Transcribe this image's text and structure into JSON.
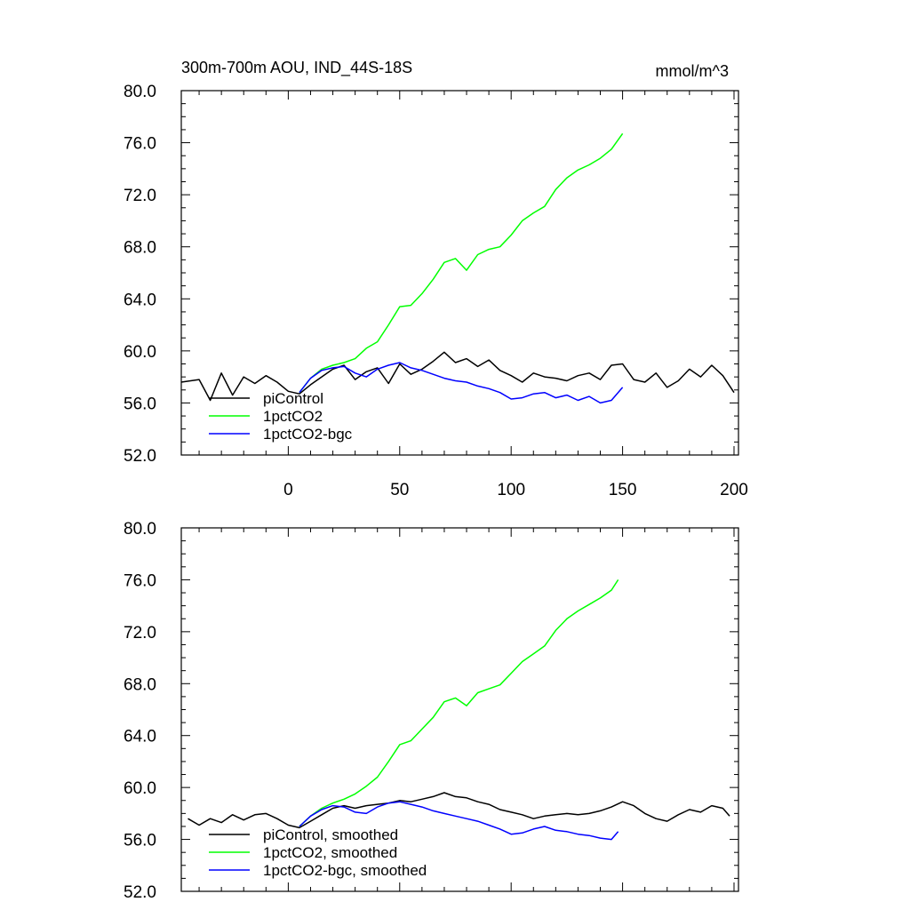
{
  "header": {
    "title": "300m-700m AOU, IND_44S-18S",
    "units": "mmol/m^3"
  },
  "chart_data": [
    {
      "type": "line",
      "panel": "raw",
      "xlim": [
        -48,
        202
      ],
      "ylim": [
        52,
        80
      ],
      "xticks": [
        0,
        50,
        100,
        150,
        200
      ],
      "xtick_labels": [
        "0",
        "50",
        "100",
        "150",
        "200"
      ],
      "yticks": [
        52,
        56,
        60,
        64,
        68,
        72,
        76,
        80
      ],
      "ytick_labels": [
        "52.0",
        "56.0",
        "60.0",
        "64.0",
        "68.0",
        "72.0",
        "76.0",
        "80.0"
      ],
      "legend_position": "bottom-left",
      "series": [
        {
          "name": "piControl",
          "color": "#000000",
          "x": [
            -48,
            -40,
            -35,
            -30,
            -25,
            -20,
            -15,
            -10,
            -5,
            0,
            5,
            10,
            15,
            20,
            25,
            30,
            35,
            40,
            45,
            50,
            55,
            60,
            65,
            70,
            75,
            80,
            85,
            90,
            95,
            100,
            105,
            110,
            115,
            120,
            125,
            130,
            135,
            140,
            145,
            150,
            155,
            160,
            165,
            170,
            175,
            180,
            185,
            190,
            195,
            200
          ],
          "y": [
            57.6,
            57.8,
            56.2,
            58.3,
            56.6,
            58.0,
            57.5,
            58.1,
            57.6,
            56.9,
            56.7,
            57.4,
            58.0,
            58.6,
            58.9,
            57.8,
            58.4,
            58.7,
            57.5,
            59.0,
            58.2,
            58.6,
            59.2,
            59.9,
            59.1,
            59.4,
            58.8,
            59.3,
            58.5,
            58.1,
            57.6,
            58.3,
            58.0,
            57.9,
            57.7,
            58.1,
            58.3,
            57.8,
            58.9,
            59.0,
            57.8,
            57.6,
            58.3,
            57.2,
            57.7,
            58.6,
            58.0,
            58.9,
            58.1,
            56.8
          ]
        },
        {
          "name": "1pctCO2",
          "color": "#00ff00",
          "x": [
            5,
            10,
            15,
            20,
            25,
            30,
            35,
            40,
            45,
            50,
            55,
            60,
            65,
            70,
            75,
            80,
            85,
            90,
            95,
            100,
            105,
            110,
            115,
            120,
            125,
            130,
            135,
            140,
            145,
            150
          ],
          "y": [
            56.8,
            57.9,
            58.6,
            58.9,
            59.1,
            59.4,
            60.2,
            60.7,
            62.0,
            63.4,
            63.5,
            64.4,
            65.5,
            66.8,
            67.1,
            66.2,
            67.4,
            67.8,
            68.0,
            68.9,
            70.0,
            70.6,
            71.1,
            72.4,
            73.3,
            73.9,
            74.3,
            74.8,
            75.5,
            76.7
          ]
        },
        {
          "name": "1pctCO2-bgc",
          "color": "#0000ff",
          "x": [
            5,
            10,
            15,
            20,
            25,
            30,
            35,
            40,
            45,
            50,
            55,
            60,
            65,
            70,
            75,
            80,
            85,
            90,
            95,
            100,
            105,
            110,
            115,
            120,
            125,
            130,
            135,
            140,
            145,
            150
          ],
          "y": [
            56.8,
            57.9,
            58.5,
            58.7,
            58.8,
            58.3,
            58.0,
            58.6,
            58.9,
            59.1,
            58.7,
            58.5,
            58.2,
            57.9,
            57.7,
            57.6,
            57.3,
            57.1,
            56.8,
            56.3,
            56.4,
            56.7,
            56.8,
            56.4,
            56.6,
            56.2,
            56.5,
            56.0,
            56.2,
            57.2
          ]
        }
      ]
    },
    {
      "type": "line",
      "panel": "smoothed",
      "xlim": [
        -48,
        202
      ],
      "ylim": [
        52,
        80
      ],
      "xticks": [
        0,
        50,
        100,
        150,
        200
      ],
      "xtick_labels": [
        "",
        "",
        "",
        "",
        ""
      ],
      "yticks": [
        52,
        56,
        60,
        64,
        68,
        72,
        76,
        80
      ],
      "ytick_labels": [
        "52.0",
        "56.0",
        "60.0",
        "64.0",
        "68.0",
        "72.0",
        "76.0",
        "80.0"
      ],
      "legend_position": "bottom-left",
      "series": [
        {
          "name": "piControl, smoothed",
          "color": "#000000",
          "x": [
            -45,
            -40,
            -35,
            -30,
            -25,
            -20,
            -15,
            -10,
            -5,
            0,
            5,
            10,
            15,
            20,
            25,
            30,
            35,
            40,
            45,
            50,
            55,
            60,
            65,
            70,
            75,
            80,
            85,
            90,
            95,
            100,
            105,
            110,
            115,
            120,
            125,
            130,
            135,
            140,
            145,
            150,
            155,
            160,
            165,
            170,
            175,
            180,
            185,
            190,
            195,
            198
          ],
          "y": [
            57.6,
            57.1,
            57.6,
            57.3,
            57.9,
            57.5,
            57.9,
            58.0,
            57.6,
            57.1,
            56.9,
            57.4,
            57.9,
            58.4,
            58.6,
            58.4,
            58.6,
            58.7,
            58.8,
            59.0,
            58.9,
            59.1,
            59.3,
            59.6,
            59.3,
            59.2,
            58.9,
            58.7,
            58.3,
            58.1,
            57.9,
            57.6,
            57.8,
            57.9,
            58.0,
            57.9,
            58.0,
            58.2,
            58.5,
            58.9,
            58.6,
            58.0,
            57.6,
            57.4,
            57.9,
            58.3,
            58.1,
            58.6,
            58.4,
            57.8
          ]
        },
        {
          "name": "1pctCO2, smoothed",
          "color": "#00ff00",
          "x": [
            5,
            10,
            15,
            20,
            25,
            30,
            35,
            40,
            45,
            50,
            55,
            60,
            65,
            70,
            75,
            80,
            85,
            90,
            95,
            100,
            105,
            110,
            115,
            120,
            125,
            130,
            135,
            140,
            145,
            148
          ],
          "y": [
            57.0,
            57.8,
            58.4,
            58.8,
            59.1,
            59.5,
            60.1,
            60.8,
            62.0,
            63.3,
            63.6,
            64.5,
            65.4,
            66.6,
            66.9,
            66.3,
            67.3,
            67.6,
            67.9,
            68.8,
            69.7,
            70.3,
            70.9,
            72.1,
            73.0,
            73.6,
            74.1,
            74.6,
            75.2,
            76.0
          ]
        },
        {
          "name": "1pctCO2-bgc, smoothed",
          "color": "#0000ff",
          "x": [
            5,
            10,
            15,
            20,
            25,
            30,
            35,
            40,
            45,
            50,
            55,
            60,
            65,
            70,
            75,
            80,
            85,
            90,
            95,
            100,
            105,
            110,
            115,
            120,
            125,
            130,
            135,
            140,
            145,
            148
          ],
          "y": [
            57.0,
            57.8,
            58.3,
            58.6,
            58.5,
            58.1,
            58.0,
            58.5,
            58.8,
            58.9,
            58.7,
            58.5,
            58.2,
            58.0,
            57.8,
            57.6,
            57.4,
            57.1,
            56.8,
            56.4,
            56.5,
            56.8,
            57.0,
            56.7,
            56.6,
            56.4,
            56.3,
            56.1,
            56.0,
            56.6
          ]
        }
      ]
    }
  ]
}
